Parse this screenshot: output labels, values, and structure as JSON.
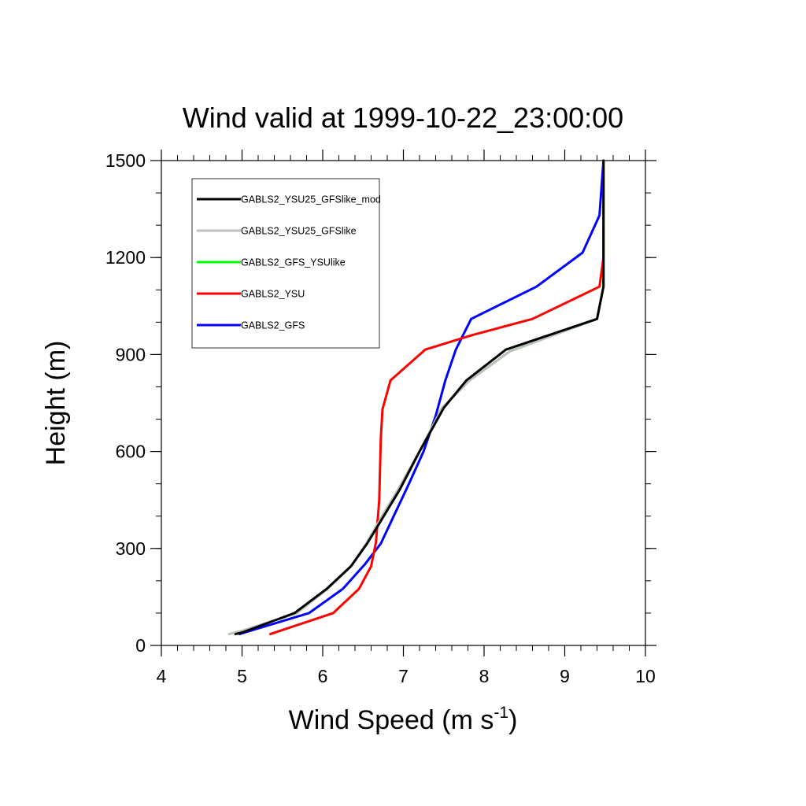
{
  "chart_data": {
    "type": "line",
    "title": "Wind valid at 1999-10-22_23:00:00",
    "xlabel": "Wind Speed (m s",
    "xlabel_superscript": "-1",
    "xlabel_suffix": ")",
    "ylabel": "Height (m)",
    "xlim": [
      4,
      10
    ],
    "ylim": [
      0,
      1500
    ],
    "x_ticks": [
      4,
      5,
      6,
      7,
      8,
      9,
      10
    ],
    "y_ticks": [
      0,
      300,
      600,
      900,
      1200,
      1500
    ],
    "x_minor_step": 0.2,
    "y_minor_step": 100,
    "grid": false,
    "legend_position": "top-left",
    "series": [
      {
        "name": "GABLS2_YSU25_GFSlike_mod",
        "color": "#000000",
        "points": [
          [
            4.92,
            35
          ],
          [
            5.0,
            40
          ],
          [
            5.65,
            100
          ],
          [
            6.05,
            175
          ],
          [
            6.35,
            245
          ],
          [
            6.55,
            315
          ],
          [
            6.78,
            410
          ],
          [
            6.95,
            480
          ],
          [
            7.2,
            600
          ],
          [
            7.5,
            735
          ],
          [
            7.78,
            820
          ],
          [
            8.27,
            915
          ],
          [
            9.4,
            1010
          ],
          [
            9.48,
            1110
          ],
          [
            9.48,
            1500
          ]
        ]
      },
      {
        "name": "GABLS2_YSU25_GFSlike",
        "color": "#bfbfbf",
        "points": [
          [
            4.84,
            35
          ],
          [
            5.0,
            45
          ],
          [
            5.68,
            100
          ],
          [
            6.06,
            175
          ],
          [
            6.35,
            245
          ],
          [
            6.54,
            315
          ],
          [
            6.76,
            410
          ],
          [
            6.93,
            480
          ],
          [
            7.2,
            600
          ],
          [
            7.48,
            735
          ],
          [
            7.82,
            820
          ],
          [
            8.32,
            910
          ],
          [
            9.4,
            1010
          ],
          [
            9.48,
            1110
          ],
          [
            9.48,
            1500
          ]
        ]
      },
      {
        "name": "GABLS2_GFS_YSUlike",
        "color": "#00ff00",
        "points": [
          [
            4.84,
            35
          ],
          [
            5.0,
            45
          ],
          [
            5.68,
            100
          ],
          [
            6.06,
            175
          ],
          [
            6.35,
            245
          ],
          [
            6.54,
            315
          ],
          [
            6.76,
            410
          ],
          [
            6.93,
            480
          ],
          [
            7.2,
            600
          ],
          [
            7.48,
            735
          ],
          [
            7.82,
            820
          ],
          [
            8.32,
            910
          ],
          [
            9.4,
            1010
          ],
          [
            9.48,
            1110
          ],
          [
            9.48,
            1500
          ]
        ]
      },
      {
        "name": "GABLS2_YSU",
        "color": "#ff0000",
        "points": [
          [
            5.35,
            35
          ],
          [
            6.13,
            100
          ],
          [
            6.45,
            175
          ],
          [
            6.6,
            245
          ],
          [
            6.66,
            320
          ],
          [
            6.7,
            450
          ],
          [
            6.72,
            640
          ],
          [
            6.74,
            730
          ],
          [
            6.84,
            820
          ],
          [
            7.27,
            915
          ],
          [
            7.85,
            960
          ],
          [
            8.6,
            1010
          ],
          [
            9.43,
            1110
          ],
          [
            9.48,
            1200
          ],
          [
            9.48,
            1500
          ]
        ]
      },
      {
        "name": "GABLS2_GFS",
        "color": "#0000ff",
        "points": [
          [
            4.97,
            35
          ],
          [
            5.1,
            45
          ],
          [
            5.83,
            100
          ],
          [
            6.25,
            175
          ],
          [
            6.52,
            250
          ],
          [
            6.72,
            315
          ],
          [
            6.88,
            400
          ],
          [
            7.05,
            490
          ],
          [
            7.25,
            600
          ],
          [
            7.4,
            710
          ],
          [
            7.52,
            820
          ],
          [
            7.65,
            915
          ],
          [
            7.84,
            1010
          ],
          [
            8.65,
            1110
          ],
          [
            9.22,
            1215
          ],
          [
            9.43,
            1330
          ],
          [
            9.48,
            1500
          ]
        ]
      }
    ]
  }
}
